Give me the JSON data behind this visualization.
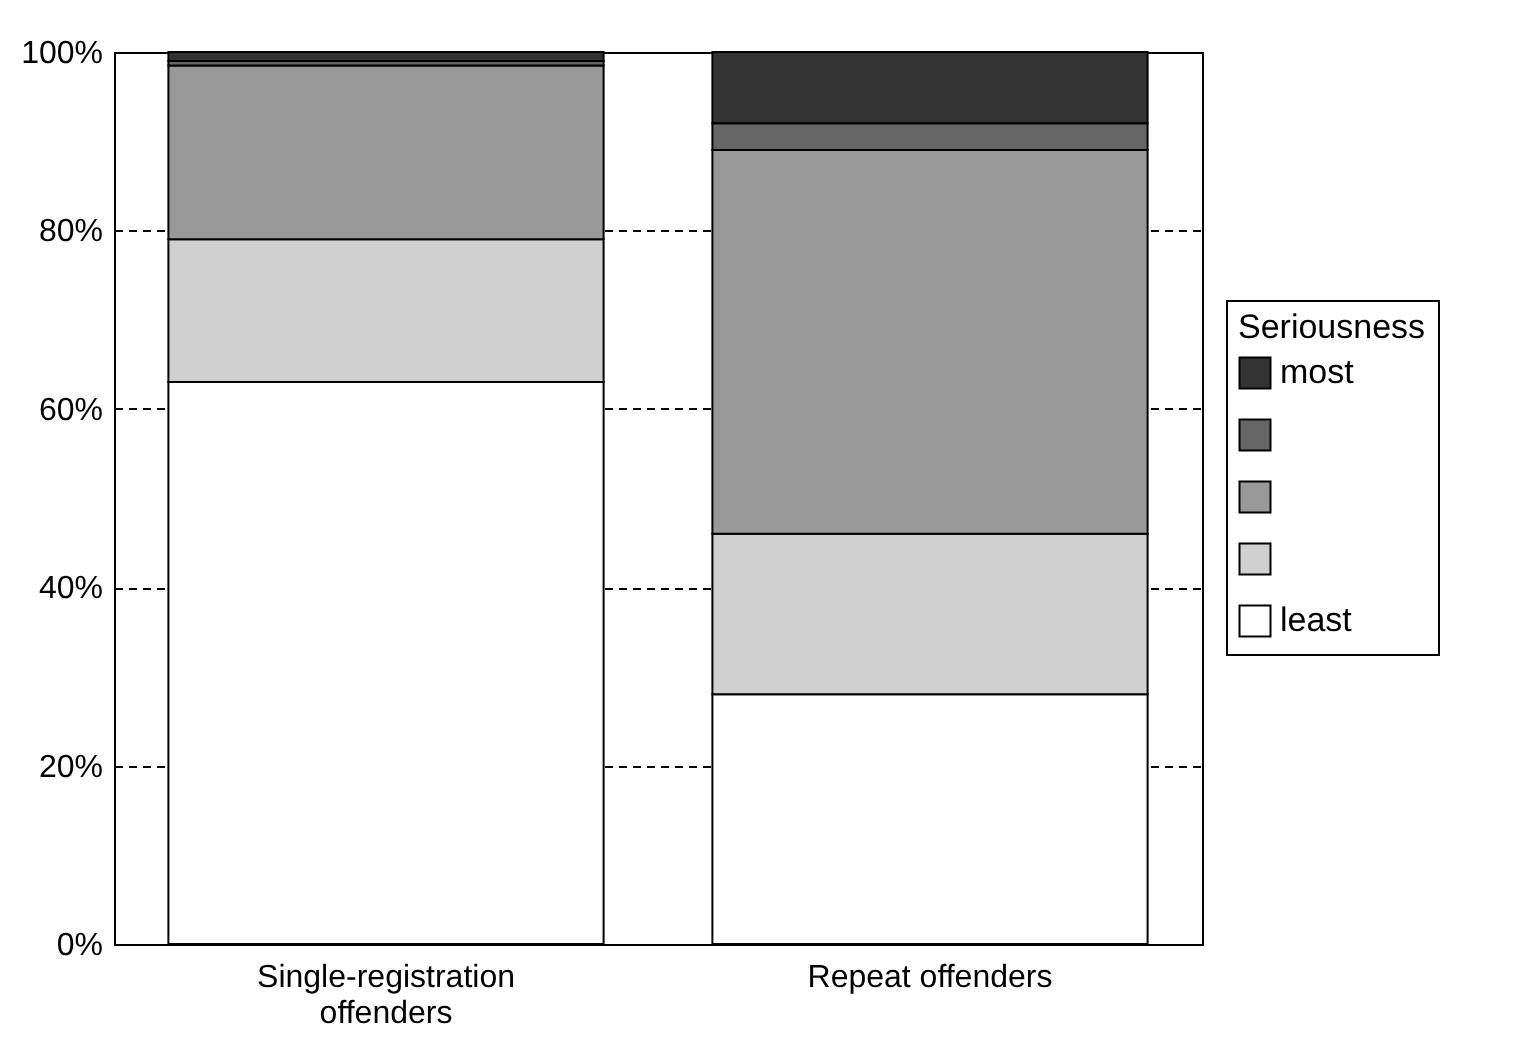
{
  "chart_data": {
    "type": "bar",
    "stacked": true,
    "categories": [
      "Single-registration offenders",
      "Repeat offenders"
    ],
    "series": [
      {
        "name": "least",
        "color": "#ffffff",
        "values": [
          63,
          28
        ]
      },
      {
        "color": "#d0d0d0",
        "values": [
          16,
          18
        ]
      },
      {
        "color": "#999999",
        "values": [
          19.5,
          43
        ]
      },
      {
        "color": "#666666",
        "values": [
          0.5,
          3
        ]
      },
      {
        "name": "most",
        "color": "#333333",
        "values": [
          1,
          8
        ]
      }
    ],
    "legend_title": "Seriousness",
    "legend": "right",
    "grid": "y",
    "ylim": [
      0,
      100
    ],
    "yticks": [
      {
        "value": 0,
        "label": "0%"
      },
      {
        "value": 20,
        "label": "20%"
      },
      {
        "value": 40,
        "label": "40%"
      },
      {
        "value": 60,
        "label": "60%"
      },
      {
        "value": 80,
        "label": "80%"
      },
      {
        "value": 100,
        "label": "100%"
      }
    ]
  }
}
